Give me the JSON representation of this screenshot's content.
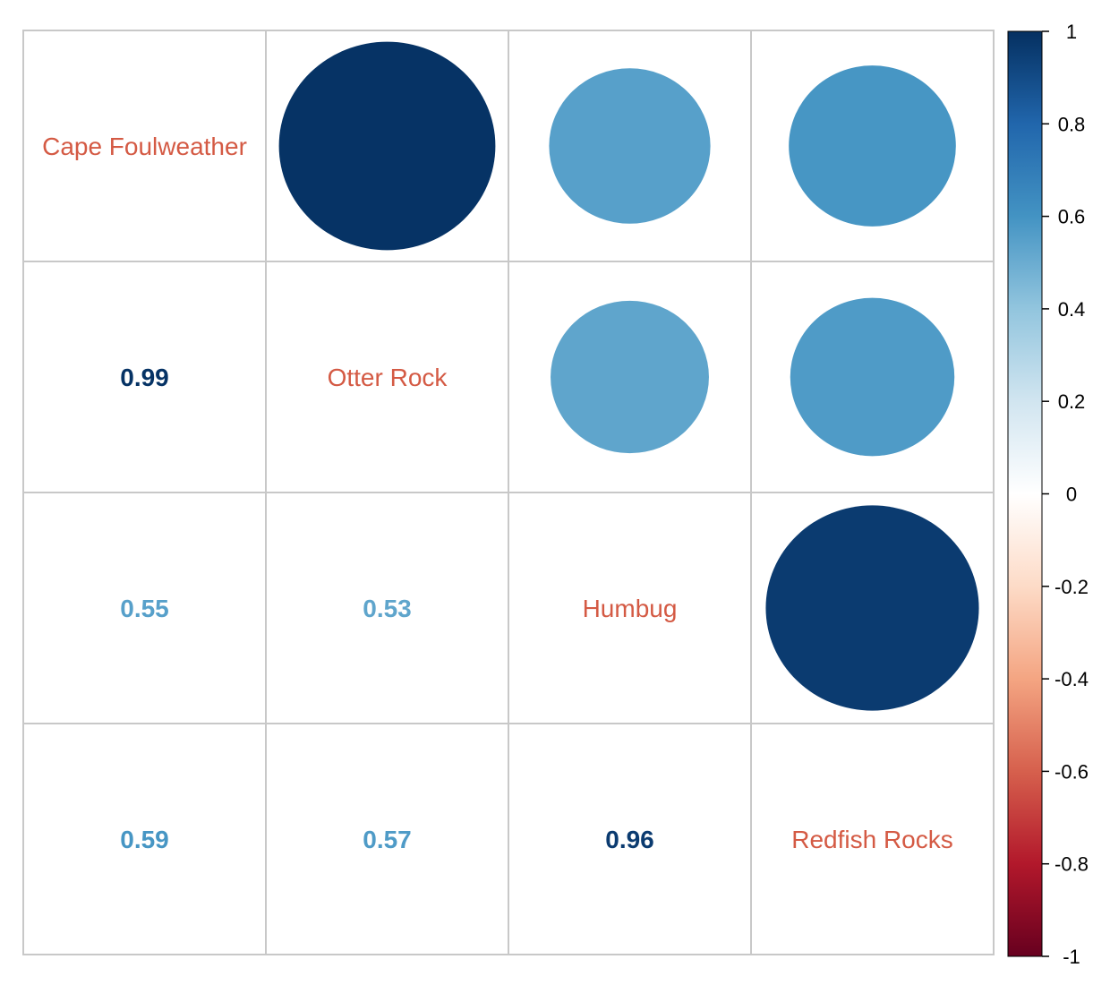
{
  "chart_data": {
    "type": "heatmap",
    "style": "correlation-matrix (upper: circles, lower: numbers, diagonal: variable names)",
    "variables": [
      "Cape Foulweather",
      "Otter Rock",
      "Humbug",
      "Redfish Rocks"
    ],
    "matrix": [
      [
        1.0,
        0.99,
        0.55,
        0.59
      ],
      [
        0.99,
        1.0,
        0.53,
        0.57
      ],
      [
        0.55,
        0.53,
        1.0,
        0.96
      ],
      [
        0.59,
        0.57,
        0.96,
        1.0
      ]
    ],
    "lower_labels": [
      {
        "row": 1,
        "col": 0,
        "text": "0.99",
        "value": 0.99
      },
      {
        "row": 2,
        "col": 0,
        "text": "0.55",
        "value": 0.55
      },
      {
        "row": 2,
        "col": 1,
        "text": "0.53",
        "value": 0.53
      },
      {
        "row": 3,
        "col": 0,
        "text": "0.59",
        "value": 0.59
      },
      {
        "row": 3,
        "col": 1,
        "text": "0.57",
        "value": 0.57
      },
      {
        "row": 3,
        "col": 2,
        "text": "0.96",
        "value": 0.96
      }
    ],
    "colorbar": {
      "range": [
        -1,
        1
      ],
      "ticks": [
        "1",
        "0.8",
        "0.6",
        "0.4",
        "0.2",
        "0",
        "-0.2",
        "-0.4",
        "-0.6",
        "-0.8",
        "-1"
      ],
      "tick_values": [
        1,
        0.8,
        0.6,
        0.4,
        0.2,
        0,
        -0.2,
        -0.4,
        -0.6,
        -0.8,
        -1
      ],
      "colors": [
        "#67001F",
        "#B2182B",
        "#D6604D",
        "#F4A582",
        "#FDDBC7",
        "#FFFFFF",
        "#D1E5F0",
        "#92C5DE",
        "#4393C3",
        "#2166AC",
        "#053061"
      ]
    },
    "label_color": "#D45A44",
    "grid_color": "#C8C8C8",
    "legend_position": "right"
  }
}
